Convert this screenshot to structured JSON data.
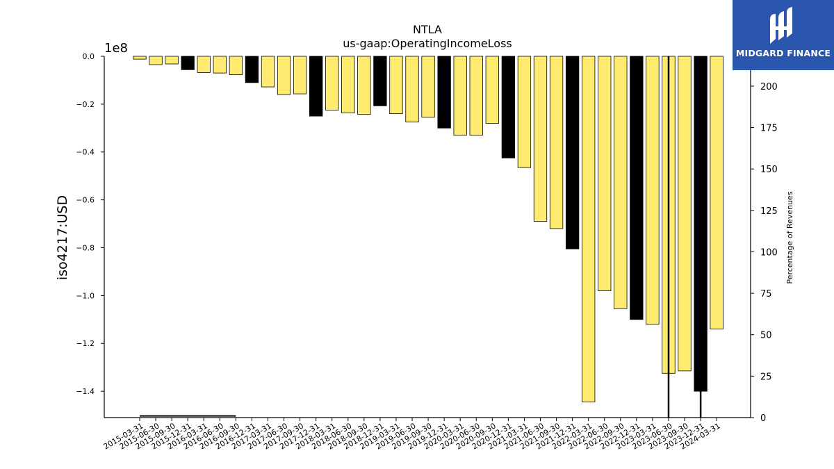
{
  "chart_data": {
    "type": "bar",
    "title": "NTLA",
    "subtitle": "us-gaap:OperatingIncomeLoss",
    "ylabel": "iso4217:USD",
    "y2label": "Percentage of Revenues",
    "offset_label": "1e8",
    "ylim": [
      -1.51,
      0.0
    ],
    "y2lim": [
      0,
      218
    ],
    "yticks": [
      0.0,
      -0.2,
      -0.4,
      -0.6,
      -0.8,
      -1.0,
      -1.2,
      -1.4
    ],
    "y2ticks": [
      0,
      25,
      50,
      75,
      100,
      125,
      150,
      175,
      200
    ],
    "categories": [
      "2015-03-31",
      "2015-06-30",
      "2015-09-30",
      "2015-12-31",
      "2016-03-31",
      "2016-06-30",
      "2016-09-30",
      "2016-12-31",
      "2017-03-31",
      "2017-06-30",
      "2017-09-30",
      "2017-12-31",
      "2018-03-31",
      "2018-06-30",
      "2018-09-30",
      "2018-12-31",
      "2019-03-31",
      "2019-06-30",
      "2019-09-30",
      "2019-12-31",
      "2020-03-31",
      "2020-06-30",
      "2020-09-30",
      "2020-12-31",
      "2021-03-31",
      "2021-06-30",
      "2021-09-30",
      "2021-12-31",
      "2022-03-31",
      "2022-06-30",
      "2022-09-30",
      "2022-12-31",
      "2023-03-31",
      "2023-06-30",
      "2023-09-30",
      "2023-12-31",
      "2024-03-31"
    ],
    "values": [
      -0.012,
      -0.035,
      -0.032,
      -0.056,
      -0.068,
      -0.07,
      -0.077,
      -0.11,
      -0.128,
      -0.16,
      -0.157,
      -0.25,
      -0.225,
      -0.237,
      -0.243,
      -0.207,
      -0.24,
      -0.275,
      -0.255,
      -0.3,
      -0.33,
      -0.33,
      -0.28,
      -0.425,
      -0.465,
      -0.69,
      -0.72,
      -0.805,
      -1.445,
      -0.98,
      -1.055,
      -1.1,
      -1.12,
      -1.325,
      -1.315,
      -1.4,
      -1.14
    ],
    "quarter_end_q4": [
      false,
      false,
      false,
      true,
      false,
      false,
      false,
      true,
      false,
      false,
      false,
      true,
      false,
      false,
      false,
      true,
      false,
      false,
      false,
      true,
      false,
      false,
      false,
      true,
      false,
      false,
      false,
      true,
      false,
      false,
      false,
      true,
      false,
      false,
      false,
      true,
      false
    ],
    "pct_of_revenue": [
      1,
      1,
      1,
      1,
      1,
      1,
      1,
      null,
      null,
      null,
      null,
      null,
      null,
      null,
      null,
      null,
      null,
      null,
      null,
      null,
      null,
      null,
      null,
      null,
      null,
      null,
      null,
      null,
      null,
      null,
      null,
      null,
      null,
      218,
      null,
      218,
      null
    ],
    "colors": {
      "quarter": "#ffeb70",
      "q4": "#000000",
      "edge": "#000000",
      "line": "#000000"
    },
    "grid": false,
    "legend": "none"
  },
  "logo": {
    "text": "MIDGARD FINANCE"
  }
}
